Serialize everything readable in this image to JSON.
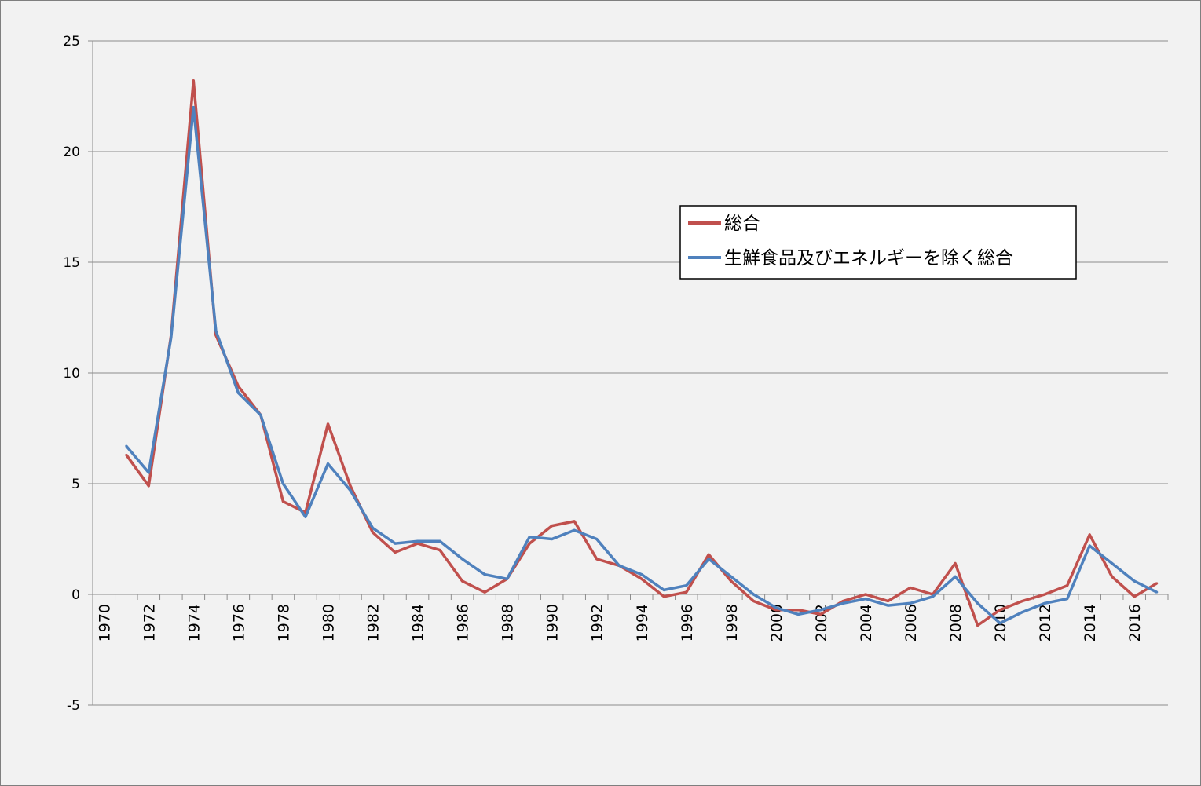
{
  "chart_data": {
    "type": "line",
    "title": "",
    "xlabel": "",
    "ylabel": "",
    "ylim": [
      -5,
      25
    ],
    "yticks": [
      25,
      20,
      15,
      10,
      5,
      0,
      -5
    ],
    "xticks": [
      1970,
      1972,
      1974,
      1976,
      1978,
      1980,
      1982,
      1984,
      1986,
      1988,
      1990,
      1992,
      1994,
      1996,
      1998,
      2000,
      2002,
      2004,
      2006,
      2008,
      2010,
      2012,
      2014,
      2016
    ],
    "xlim": [
      1970,
      2017
    ],
    "grid": true,
    "legend_position": "right",
    "x": [
      1971,
      1972,
      1973,
      1974,
      1975,
      1976,
      1977,
      1978,
      1979,
      1980,
      1981,
      1982,
      1983,
      1984,
      1985,
      1986,
      1987,
      1988,
      1989,
      1990,
      1991,
      1992,
      1993,
      1994,
      1995,
      1996,
      1997,
      1998,
      1999,
      2000,
      2001,
      2002,
      2003,
      2004,
      2005,
      2006,
      2007,
      2008,
      2009,
      2010,
      2011,
      2012,
      2013,
      2014,
      2015,
      2016,
      2017
    ],
    "series": [
      {
        "name": "総合",
        "color": "#c0504d",
        "values": [
          6.3,
          4.9,
          11.7,
          23.2,
          11.7,
          9.4,
          8.1,
          4.2,
          3.7,
          7.7,
          4.9,
          2.8,
          1.9,
          2.3,
          2.0,
          0.6,
          0.1,
          0.7,
          2.3,
          3.1,
          3.3,
          1.6,
          1.3,
          0.7,
          -0.1,
          0.1,
          1.8,
          0.6,
          -0.3,
          -0.7,
          -0.7,
          -0.9,
          -0.3,
          0.0,
          -0.3,
          0.3,
          0.0,
          1.4,
          -1.4,
          -0.7,
          -0.3,
          0.0,
          0.4,
          2.7,
          0.8,
          -0.1,
          0.5
        ]
      },
      {
        "name": "生鮮食品及びエネルギーを除く総合",
        "color": "#4f81bd",
        "values": [
          6.7,
          5.5,
          11.6,
          22.0,
          11.9,
          9.1,
          8.1,
          5.0,
          3.5,
          5.9,
          4.7,
          3.0,
          2.3,
          2.4,
          2.4,
          1.6,
          0.9,
          0.7,
          2.6,
          2.5,
          2.9,
          2.5,
          1.3,
          0.9,
          0.2,
          0.4,
          1.6,
          0.8,
          0.0,
          -0.6,
          -0.9,
          -0.7,
          -0.4,
          -0.2,
          -0.5,
          -0.4,
          -0.1,
          0.8,
          -0.4,
          -1.3,
          -0.8,
          -0.4,
          -0.2,
          2.2,
          1.4,
          0.6,
          0.1
        ]
      }
    ]
  }
}
